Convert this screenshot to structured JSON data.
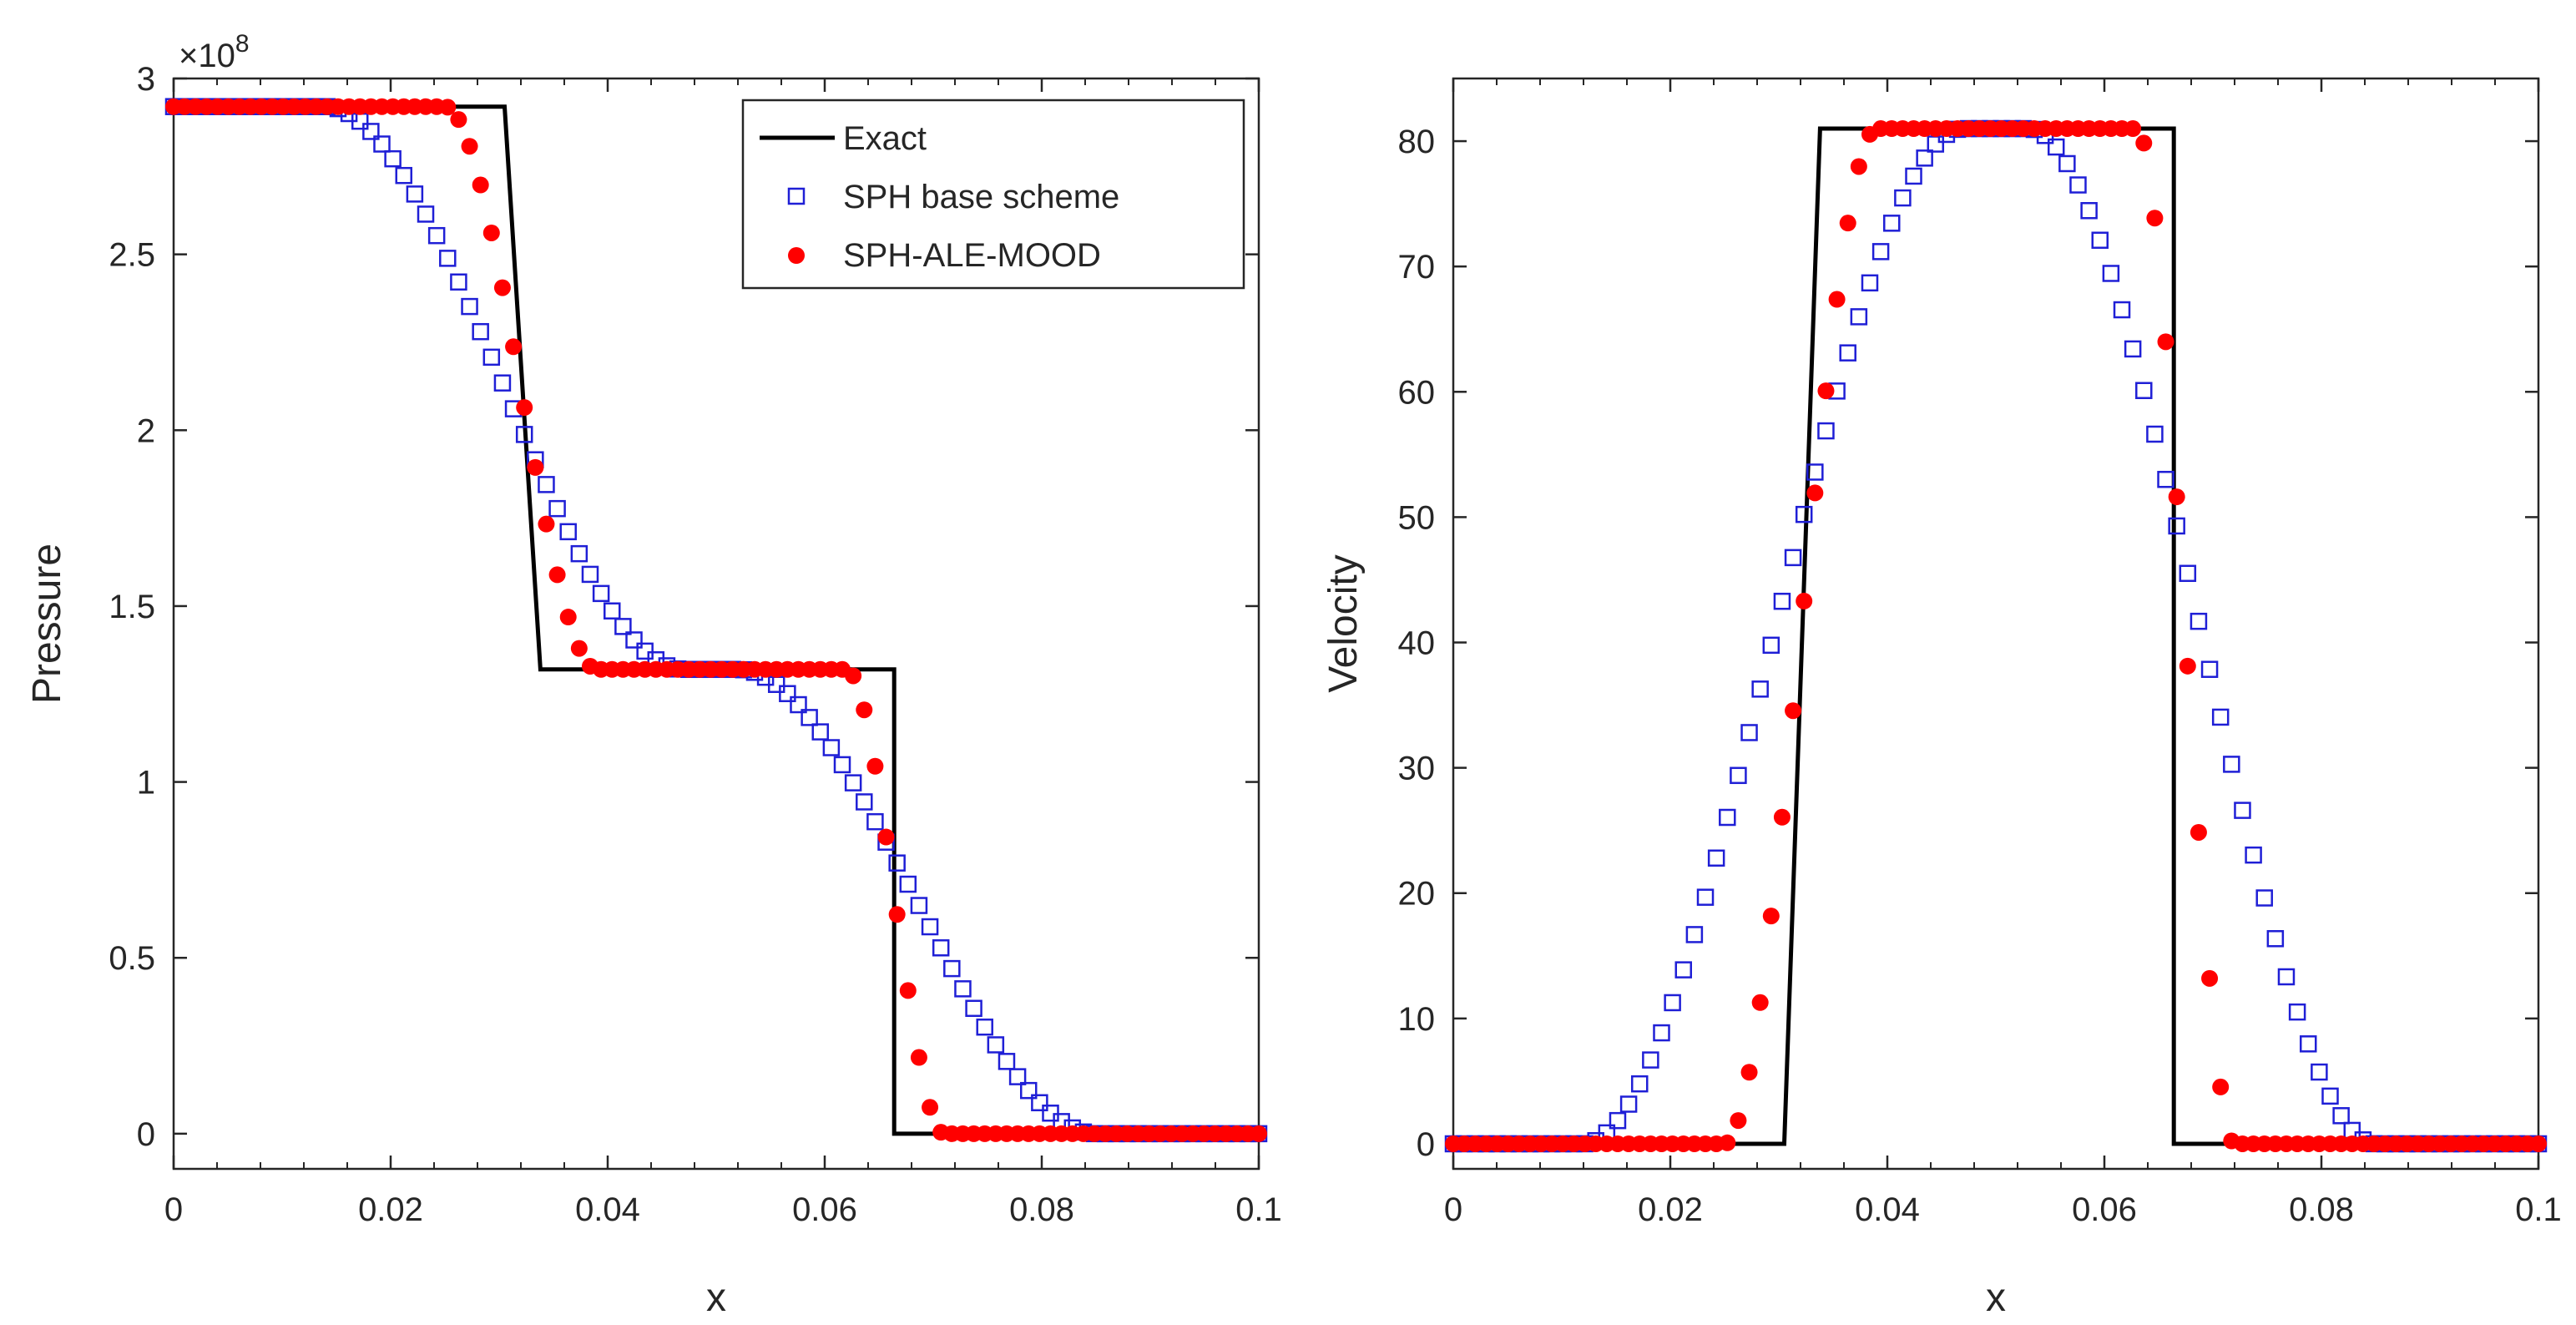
{
  "chart_data": [
    {
      "type": "line",
      "title": "",
      "xlabel": "x",
      "ylabel": "Pressure",
      "xlim": [
        0,
        0.1
      ],
      "ylim": [
        -0.1,
        3
      ],
      "y_exponent_label": "×10",
      "y_exponent_power": "8",
      "x_ticks": [
        0,
        0.02,
        0.04,
        0.06,
        0.08,
        0.1
      ],
      "x_tick_labels": [
        "0",
        "0.02",
        "0.04",
        "0.06",
        "0.08",
        "0.1"
      ],
      "y_ticks": [
        0,
        0.5,
        1,
        1.5,
        2,
        2.5,
        3
      ],
      "y_tick_labels": [
        "0",
        "0.5",
        "1",
        "1.5",
        "2",
        "2.5",
        "3"
      ],
      "legend": {
        "placement": "top-right",
        "entries": [
          "Exact",
          "SPH base scheme",
          "SPH-ALE-MOOD"
        ]
      },
      "series": [
        {
          "name": "Exact",
          "style": "line",
          "color": "#000000",
          "x": [
            0,
            0.0305,
            0.0338,
            0.0664,
            0.0664,
            0.1
          ],
          "y": [
            2.92,
            2.92,
            1.32,
            1.32,
            0.0,
            0.0
          ]
        },
        {
          "name": "SPH base scheme",
          "style": "square",
          "color": "#1f1fd6",
          "plateau_left": 2.92,
          "plateau_mid": 1.32,
          "plateau_right": 0.0,
          "x_start": 0,
          "x_end": 0.1,
          "count": 100,
          "rarefaction": {
            "from": 0.014,
            "to": 0.047
          },
          "shock": {
            "from": 0.052,
            "to": 0.085
          }
        },
        {
          "name": "SPH-ALE-MOOD",
          "style": "dot",
          "color": "#ff0000",
          "plateau_left": 2.92,
          "plateau_mid": 1.32,
          "plateau_right": 0.0,
          "x_start": 0,
          "x_end": 0.1,
          "count": 100,
          "rarefaction": {
            "from": 0.025,
            "to": 0.039
          },
          "shock": {
            "from": 0.062,
            "to": 0.071
          }
        }
      ]
    },
    {
      "type": "line",
      "title": "",
      "xlabel": "x",
      "ylabel": "Velocity",
      "xlim": [
        0,
        0.1
      ],
      "ylim": [
        -2,
        85
      ],
      "x_ticks": [
        0,
        0.02,
        0.04,
        0.06,
        0.08,
        0.1
      ],
      "x_tick_labels": [
        "0",
        "0.02",
        "0.04",
        "0.06",
        "0.08",
        "0.1"
      ],
      "y_ticks": [
        0,
        10,
        20,
        30,
        40,
        50,
        60,
        70,
        80
      ],
      "y_tick_labels": [
        "0",
        "10",
        "20",
        "30",
        "40",
        "50",
        "60",
        "70",
        "80"
      ],
      "series": [
        {
          "name": "Exact",
          "style": "line",
          "color": "#000000",
          "x": [
            0,
            0.0305,
            0.0338,
            0.0664,
            0.0664,
            0.1
          ],
          "y": [
            0,
            0,
            81,
            81,
            0,
            0
          ]
        },
        {
          "name": "SPH base scheme",
          "style": "square",
          "color": "#1f1fd6",
          "plateau_left": 0,
          "plateau_mid": 81,
          "plateau_right": 0,
          "x_start": 0,
          "x_end": 0.1,
          "count": 100,
          "rarefaction": {
            "from": 0.012,
            "to": 0.047
          },
          "shock": {
            "from": 0.053,
            "to": 0.085
          }
        },
        {
          "name": "SPH-ALE-MOOD",
          "style": "dot",
          "color": "#ff0000",
          "plateau_left": 0,
          "plateau_mid": 81,
          "plateau_right": 0,
          "x_start": 0,
          "x_end": 0.1,
          "count": 100,
          "rarefaction": {
            "from": 0.025,
            "to": 0.039
          },
          "shock": {
            "from": 0.063,
            "to": 0.072
          }
        }
      ]
    }
  ]
}
